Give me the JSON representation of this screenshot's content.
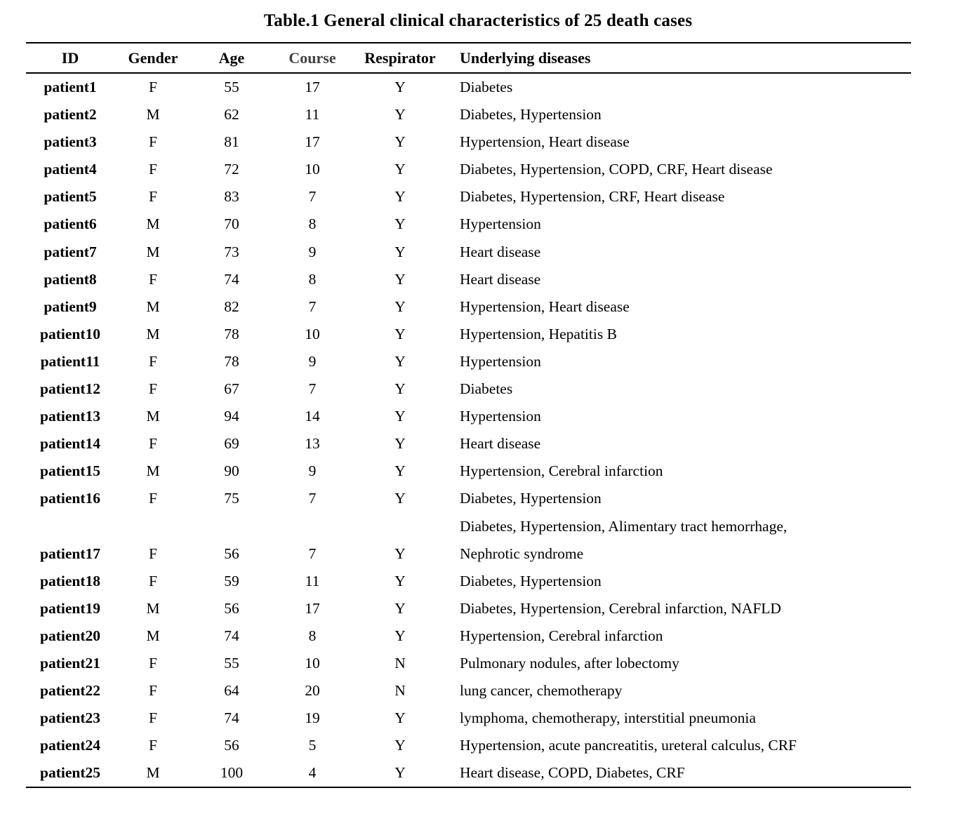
{
  "title": "Table.1 General clinical characteristics of 25 death cases",
  "colors": {
    "text": "#000000",
    "background": "#ffffff",
    "course_header": "#404040",
    "rule": "#000000"
  },
  "table": {
    "columns": [
      {
        "key": "id",
        "label": "ID"
      },
      {
        "key": "gender",
        "label": "Gender"
      },
      {
        "key": "age",
        "label": "Age"
      },
      {
        "key": "course",
        "label": "Course"
      },
      {
        "key": "respirator",
        "label": "Respirator"
      },
      {
        "key": "diseases",
        "label": "Underlying diseases"
      }
    ],
    "rows": [
      {
        "id": "patient1",
        "gender": "F",
        "age": "55",
        "course": "17",
        "respirator": "Y",
        "diseases_lines": [
          "Diabetes"
        ]
      },
      {
        "id": "patient2",
        "gender": "M",
        "age": "62",
        "course": "11",
        "respirator": "Y",
        "diseases_lines": [
          "Diabetes, Hypertension"
        ]
      },
      {
        "id": "patient3",
        "gender": "F",
        "age": "81",
        "course": "17",
        "respirator": "Y",
        "diseases_lines": [
          "Hypertension, Heart disease"
        ]
      },
      {
        "id": "patient4",
        "gender": "F",
        "age": "72",
        "course": "10",
        "respirator": "Y",
        "diseases_lines": [
          "Diabetes, Hypertension, COPD, CRF, Heart disease"
        ]
      },
      {
        "id": "patient5",
        "gender": "F",
        "age": "83",
        "course": "7",
        "respirator": "Y",
        "diseases_lines": [
          "Diabetes, Hypertension, CRF, Heart disease"
        ]
      },
      {
        "id": "patient6",
        "gender": "M",
        "age": "70",
        "course": "8",
        "respirator": "Y",
        "diseases_lines": [
          "Hypertension"
        ]
      },
      {
        "id": "patient7",
        "gender": "M",
        "age": "73",
        "course": "9",
        "respirator": "Y",
        "diseases_lines": [
          "Heart disease"
        ]
      },
      {
        "id": "patient8",
        "gender": "F",
        "age": "74",
        "course": "8",
        "respirator": "Y",
        "diseases_lines": [
          "Heart disease"
        ]
      },
      {
        "id": "patient9",
        "gender": "M",
        "age": "82",
        "course": "7",
        "respirator": "Y",
        "diseases_lines": [
          "Hypertension, Heart disease"
        ]
      },
      {
        "id": "patient10",
        "gender": "M",
        "age": "78",
        "course": "10",
        "respirator": "Y",
        "diseases_lines": [
          "Hypertension, Hepatitis B"
        ]
      },
      {
        "id": "patient11",
        "gender": "F",
        "age": "78",
        "course": "9",
        "respirator": "Y",
        "diseases_lines": [
          "Hypertension"
        ]
      },
      {
        "id": "patient12",
        "gender": "F",
        "age": "67",
        "course": "7",
        "respirator": "Y",
        "diseases_lines": [
          "Diabetes"
        ]
      },
      {
        "id": "patient13",
        "gender": "M",
        "age": "94",
        "course": "14",
        "respirator": "Y",
        "diseases_lines": [
          "Hypertension"
        ]
      },
      {
        "id": "patient14",
        "gender": "F",
        "age": "69",
        "course": "13",
        "respirator": "Y",
        "diseases_lines": [
          "Heart disease"
        ]
      },
      {
        "id": "patient15",
        "gender": "M",
        "age": "90",
        "course": "9",
        "respirator": "Y",
        "diseases_lines": [
          "Hypertension, Cerebral infarction"
        ]
      },
      {
        "id": "patient16",
        "gender": "F",
        "age": "75",
        "course": "7",
        "respirator": "Y",
        "diseases_lines": [
          "Diabetes, Hypertension"
        ]
      },
      {
        "id": "patient17",
        "gender": "F",
        "age": "56",
        "course": "7",
        "respirator": "Y",
        "diseases_lines": [
          "Diabetes, Hypertension, Alimentary tract hemorrhage,",
          "Nephrotic syndrome"
        ]
      },
      {
        "id": "patient18",
        "gender": "F",
        "age": "59",
        "course": "11",
        "respirator": "Y",
        "diseases_lines": [
          "Diabetes, Hypertension"
        ]
      },
      {
        "id": "patient19",
        "gender": "M",
        "age": "56",
        "course": "17",
        "respirator": "Y",
        "diseases_lines": [
          "Diabetes, Hypertension, Cerebral infarction, NAFLD"
        ]
      },
      {
        "id": "patient20",
        "gender": "M",
        "age": "74",
        "course": "8",
        "respirator": "Y",
        "diseases_lines": [
          "Hypertension, Cerebral infarction"
        ]
      },
      {
        "id": "patient21",
        "gender": "F",
        "age": "55",
        "course": "10",
        "respirator": "N",
        "diseases_lines": [
          "Pulmonary nodules, after lobectomy"
        ]
      },
      {
        "id": "patient22",
        "gender": "F",
        "age": "64",
        "course": "20",
        "respirator": "N",
        "diseases_lines": [
          "lung cancer, chemotherapy"
        ]
      },
      {
        "id": "patient23",
        "gender": "F",
        "age": "74",
        "course": "19",
        "respirator": "Y",
        "diseases_lines": [
          "lymphoma, chemotherapy, interstitial pneumonia"
        ]
      },
      {
        "id": "patient24",
        "gender": "F",
        "age": "56",
        "course": "5",
        "respirator": "Y",
        "diseases_lines": [
          "Hypertension, acute pancreatitis, ureteral calculus, CRF"
        ]
      },
      {
        "id": "patient25",
        "gender": "M",
        "age": "100",
        "course": "4",
        "respirator": "Y",
        "diseases_lines": [
          "Heart disease, COPD, Diabetes, CRF"
        ]
      }
    ]
  }
}
